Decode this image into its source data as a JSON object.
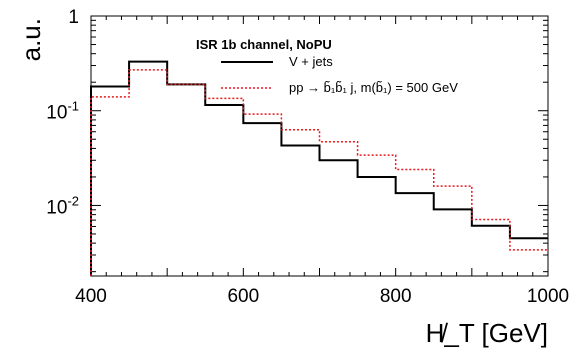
{
  "chart_data": {
    "type": "line",
    "title": "ISR 1b channel, NoPU",
    "xlabel": "H̸_T [GeV]",
    "ylabel": "a.u.",
    "xlim": [
      400,
      1000
    ],
    "ylim": [
      0.0018,
      1
    ],
    "y_scale": "log",
    "grid": false,
    "legend_position": "top-right",
    "x_tick_labels": [
      "400",
      "600",
      "800",
      "1000"
    ],
    "x_ticks": [
      400,
      600,
      800,
      1000
    ],
    "y_tick_labels": [
      {
        "value": 1,
        "base": "1",
        "exp": ""
      },
      {
        "value": 0.1,
        "base": "10",
        "exp": "-1"
      },
      {
        "value": 0.01,
        "base": "10",
        "exp": "-2"
      }
    ],
    "bin_edges": [
      400,
      450,
      500,
      550,
      600,
      650,
      700,
      750,
      800,
      850,
      900,
      950,
      1000
    ],
    "series": [
      {
        "name": "V + jets",
        "style": "solid",
        "color": "#000000",
        "values": [
          0.18,
          0.33,
          0.19,
          0.115,
          0.074,
          0.043,
          0.03,
          0.02,
          0.0135,
          0.0091,
          0.0061,
          0.0045
        ]
      },
      {
        "name": "pp → b̃₁b̃₁ j, m(b̃₁) = 500 GeV",
        "style": "dotted",
        "color": "#e8191c",
        "values": [
          0.14,
          0.27,
          0.19,
          0.135,
          0.092,
          0.063,
          0.047,
          0.034,
          0.024,
          0.016,
          0.0071,
          0.0034
        ]
      }
    ]
  }
}
